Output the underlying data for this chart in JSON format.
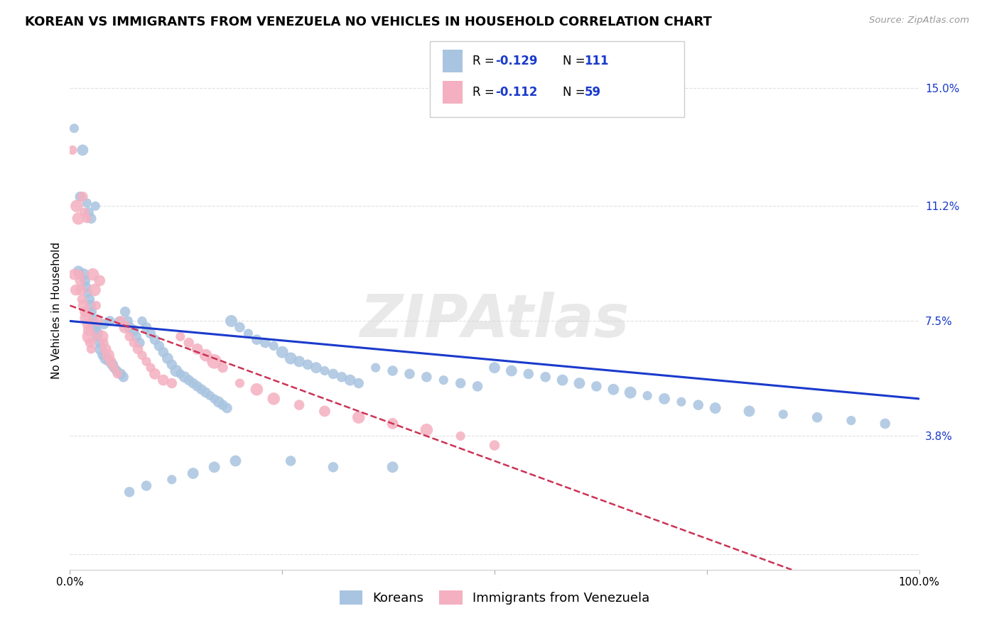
{
  "title": "KOREAN VS IMMIGRANTS FROM VENEZUELA NO VEHICLES IN HOUSEHOLD CORRELATION CHART",
  "source": "Source: ZipAtlas.com",
  "ylabel": "No Vehicles in Household",
  "yticks": [
    0.0,
    0.038,
    0.075,
    0.112,
    0.15
  ],
  "ytick_labels": [
    "",
    "3.8%",
    "7.5%",
    "11.2%",
    "15.0%"
  ],
  "xmin": 0.0,
  "xmax": 1.0,
  "ymin": -0.005,
  "ymax": 0.162,
  "korean_R": -0.129,
  "korean_N": 111,
  "venezuela_R": -0.112,
  "venezuela_N": 59,
  "korean_color": "#a8c4e0",
  "korean_line_color": "#1a3acc",
  "venezuela_color": "#f4b0c0",
  "venezuela_line_color": "#cc3355",
  "background_color": "#ffffff",
  "grid_color": "#e0e0e0",
  "title_fontsize": 13,
  "axis_label_fontsize": 11,
  "tick_fontsize": 11,
  "legend_fontsize": 13,
  "korean_x": [
    0.005,
    0.01,
    0.012,
    0.015,
    0.016,
    0.018,
    0.019,
    0.02,
    0.021,
    0.022,
    0.023,
    0.024,
    0.025,
    0.026,
    0.027,
    0.028,
    0.03,
    0.031,
    0.032,
    0.033,
    0.035,
    0.036,
    0.038,
    0.04,
    0.042,
    0.045,
    0.047,
    0.05,
    0.052,
    0.055,
    0.058,
    0.06,
    0.063,
    0.065,
    0.068,
    0.07,
    0.075,
    0.078,
    0.082,
    0.085,
    0.09,
    0.095,
    0.1,
    0.105,
    0.11,
    0.115,
    0.12,
    0.125,
    0.13,
    0.135,
    0.14,
    0.145,
    0.15,
    0.155,
    0.16,
    0.165,
    0.17,
    0.175,
    0.18,
    0.185,
    0.19,
    0.2,
    0.21,
    0.22,
    0.23,
    0.24,
    0.25,
    0.26,
    0.27,
    0.28,
    0.29,
    0.3,
    0.31,
    0.32,
    0.33,
    0.34,
    0.36,
    0.38,
    0.4,
    0.42,
    0.44,
    0.46,
    0.48,
    0.5,
    0.52,
    0.54,
    0.56,
    0.58,
    0.6,
    0.62,
    0.64,
    0.66,
    0.68,
    0.7,
    0.72,
    0.74,
    0.76,
    0.8,
    0.84,
    0.88,
    0.92,
    0.96,
    0.38,
    0.31,
    0.26,
    0.195,
    0.17,
    0.145,
    0.12,
    0.09,
    0.07
  ],
  "korean_y": [
    0.137,
    0.091,
    0.115,
    0.13,
    0.09,
    0.088,
    0.086,
    0.113,
    0.084,
    0.11,
    0.082,
    0.08,
    0.108,
    0.078,
    0.076,
    0.074,
    0.112,
    0.073,
    0.071,
    0.07,
    0.068,
    0.066,
    0.064,
    0.074,
    0.063,
    0.062,
    0.075,
    0.061,
    0.06,
    0.059,
    0.075,
    0.058,
    0.057,
    0.078,
    0.075,
    0.073,
    0.072,
    0.07,
    0.068,
    0.075,
    0.073,
    0.071,
    0.069,
    0.067,
    0.065,
    0.063,
    0.061,
    0.059,
    0.058,
    0.057,
    0.056,
    0.055,
    0.054,
    0.053,
    0.052,
    0.051,
    0.05,
    0.049,
    0.048,
    0.047,
    0.075,
    0.073,
    0.071,
    0.069,
    0.068,
    0.067,
    0.065,
    0.063,
    0.062,
    0.061,
    0.06,
    0.059,
    0.058,
    0.057,
    0.056,
    0.055,
    0.06,
    0.059,
    0.058,
    0.057,
    0.056,
    0.055,
    0.054,
    0.06,
    0.059,
    0.058,
    0.057,
    0.056,
    0.055,
    0.054,
    0.053,
    0.052,
    0.051,
    0.05,
    0.049,
    0.048,
    0.047,
    0.046,
    0.045,
    0.044,
    0.043,
    0.042,
    0.028,
    0.028,
    0.03,
    0.03,
    0.028,
    0.026,
    0.024,
    0.022,
    0.02
  ],
  "venezuela_x": [
    0.003,
    0.005,
    0.007,
    0.008,
    0.01,
    0.011,
    0.012,
    0.013,
    0.014,
    0.015,
    0.016,
    0.017,
    0.018,
    0.019,
    0.02,
    0.021,
    0.022,
    0.023,
    0.024,
    0.025,
    0.027,
    0.029,
    0.031,
    0.033,
    0.035,
    0.038,
    0.04,
    0.042,
    0.045,
    0.048,
    0.052,
    0.056,
    0.06,
    0.065,
    0.07,
    0.075,
    0.08,
    0.085,
    0.09,
    0.095,
    0.1,
    0.11,
    0.12,
    0.13,
    0.14,
    0.15,
    0.16,
    0.17,
    0.18,
    0.2,
    0.22,
    0.24,
    0.27,
    0.3,
    0.34,
    0.38,
    0.42,
    0.46,
    0.5
  ],
  "venezuela_y": [
    0.13,
    0.09,
    0.085,
    0.112,
    0.108,
    0.09,
    0.088,
    0.085,
    0.082,
    0.115,
    0.08,
    0.11,
    0.078,
    0.076,
    0.108,
    0.074,
    0.072,
    0.07,
    0.068,
    0.066,
    0.09,
    0.085,
    0.08,
    0.075,
    0.088,
    0.07,
    0.068,
    0.066,
    0.064,
    0.062,
    0.06,
    0.058,
    0.075,
    0.073,
    0.07,
    0.068,
    0.066,
    0.064,
    0.062,
    0.06,
    0.058,
    0.056,
    0.055,
    0.07,
    0.068,
    0.066,
    0.064,
    0.062,
    0.06,
    0.055,
    0.053,
    0.05,
    0.048,
    0.046,
    0.044,
    0.042,
    0.04,
    0.038,
    0.035
  ]
}
